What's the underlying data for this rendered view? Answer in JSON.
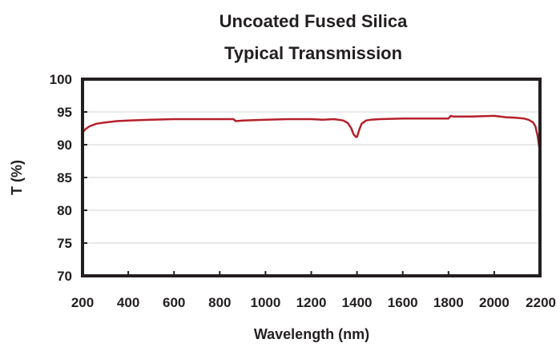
{
  "chart_data": {
    "type": "line",
    "title": "Uncoated Fused Silica",
    "subtitle": "Typical Transmission",
    "xlabel": "Wavelength (nm)",
    "ylabel": "T (%)",
    "xlim": [
      200,
      2200
    ],
    "ylim": [
      70,
      100
    ],
    "xticks": [
      200,
      400,
      600,
      800,
      1000,
      1200,
      1400,
      1600,
      1800,
      2000,
      2200
    ],
    "yticks": [
      70,
      75,
      80,
      85,
      90,
      95,
      100
    ],
    "grid": true,
    "legend": "none",
    "series": [
      {
        "color": "#b5202b",
        "x": [
          200,
          210,
          230,
          260,
          300,
          350,
          400,
          500,
          600,
          700,
          800,
          860,
          870,
          900,
          1000,
          1100,
          1200,
          1250,
          1300,
          1340,
          1360,
          1375,
          1385,
          1395,
          1400,
          1410,
          1420,
          1440,
          1460,
          1500,
          1600,
          1700,
          1800,
          1810,
          1820,
          1900,
          2000,
          2050,
          2100,
          2130,
          2150,
          2170,
          2180,
          2190,
          2200
        ],
        "y": [
          91.8,
          92.3,
          92.8,
          93.2,
          93.4,
          93.6,
          93.7,
          93.8,
          93.9,
          93.9,
          93.9,
          93.9,
          93.6,
          93.7,
          93.8,
          93.9,
          93.9,
          93.8,
          93.9,
          93.7,
          93.3,
          92.5,
          91.6,
          91.2,
          91.2,
          92.3,
          93.2,
          93.7,
          93.8,
          93.9,
          94.0,
          94.0,
          94.0,
          94.4,
          94.3,
          94.3,
          94.4,
          94.2,
          94.1,
          94.0,
          93.8,
          93.4,
          92.8,
          91.3,
          88.8
        ]
      }
    ]
  }
}
